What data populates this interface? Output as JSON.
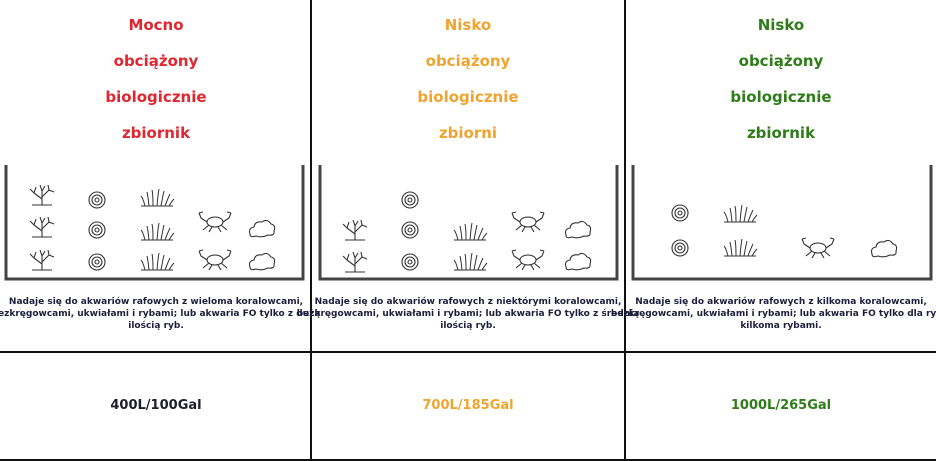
{
  "columns": [
    {
      "title": [
        "Mocno",
        "obciążony",
        "biologicznie",
        "zbiornik"
      ],
      "description": [
        "Nadaje się do akwariów rafowych z wieloma koralowcami,",
        "bezkręgowcami, ukwiałami i rybami; lub akwaria FO tylko z dużą",
        "ilością ryb."
      ],
      "volume": "400L/100Gal"
    },
    {
      "title": [
        "Nisko",
        "obciążony",
        "biologicznie",
        "zbiorni"
      ],
      "description": [
        "Nadaje się do akwariów rafowych z niektórymi koralowcami,",
        "bezkręgowcami, ukwiałami i rybami; lub akwaria FO tylko z średnią",
        "ilością ryb."
      ],
      "volume": "700L/185Gal"
    },
    {
      "title": [
        "Nisko",
        "obciążony",
        "biologicznie",
        "zbiornik"
      ],
      "description": [
        "Nadaje się do akwariów rafowych z kilkoma koralowcami,",
        "bezkręgowcami, ukwiałami i rybami; lub akwaria FO tylko dla ryb z",
        "kilkoma rybami."
      ],
      "volume": "1000L/265Gal"
    }
  ]
}
